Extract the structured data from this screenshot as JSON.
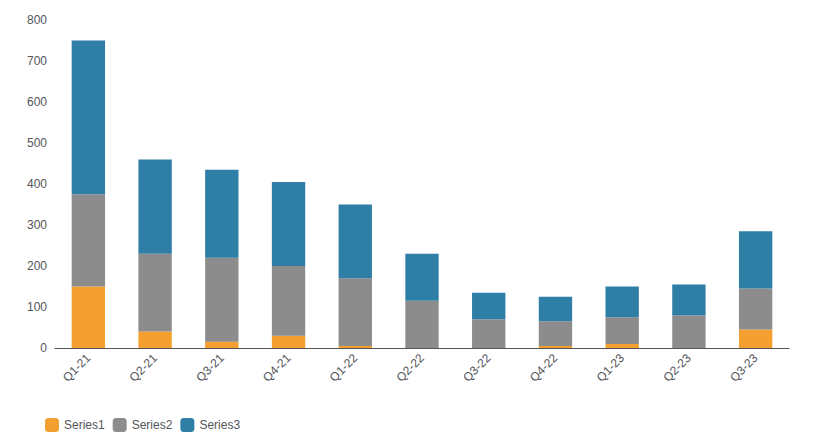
{
  "chart_data": {
    "type": "bar",
    "stacked": true,
    "categories": [
      "Q1-21",
      "Q2-21",
      "Q3-21",
      "Q4-21",
      "Q1-22",
      "Q2-22",
      "Q3-22",
      "Q4-22",
      "Q1-23",
      "Q2-23",
      "Q3-23"
    ],
    "series": [
      {
        "name": "Series1",
        "color": "#F4A030",
        "values": [
          150,
          40,
          15,
          30,
          5,
          0,
          0,
          5,
          10,
          0,
          45
        ]
      },
      {
        "name": "Series2",
        "color": "#8C8C8C",
        "values": [
          225,
          190,
          205,
          170,
          165,
          115,
          70,
          60,
          65,
          80,
          100
        ]
      },
      {
        "name": "Series3",
        "color": "#2E7EA6",
        "values": [
          375,
          230,
          215,
          205,
          180,
          115,
          65,
          60,
          75,
          75,
          140
        ]
      }
    ],
    "ylim": [
      0,
      800
    ],
    "yticks": [
      0,
      100,
      200,
      300,
      400,
      500,
      600,
      700,
      800
    ],
    "grid": false,
    "legend": "lower left"
  }
}
